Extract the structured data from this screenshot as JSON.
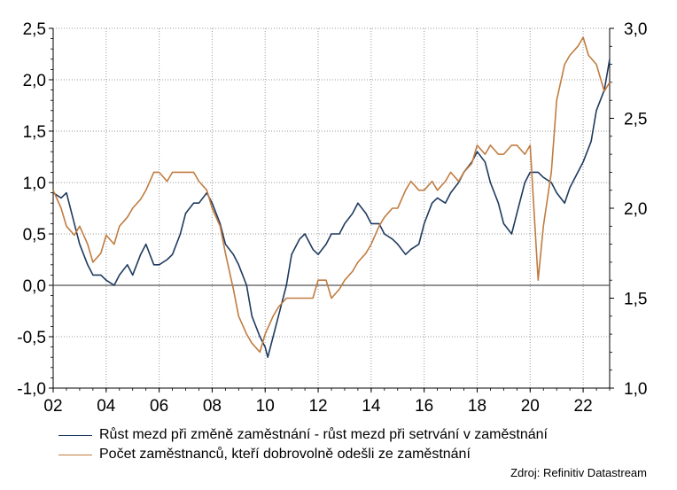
{
  "chart_data": {
    "type": "line",
    "x_range": [
      2002,
      2023
    ],
    "x_tick_labels": [
      "02",
      "04",
      "06",
      "08",
      "10",
      "12",
      "14",
      "16",
      "18",
      "20",
      "22"
    ],
    "x_tick_values": [
      2002,
      2004,
      2006,
      2008,
      2010,
      2012,
      2014,
      2016,
      2018,
      2020,
      2022
    ],
    "y_left": {
      "range": [
        -1.0,
        2.5
      ],
      "ticks": [
        -1.0,
        -0.5,
        0.0,
        0.5,
        1.0,
        1.5,
        2.0,
        2.5
      ],
      "tick_labels": [
        "-1,0",
        "-0,5",
        "0,0",
        "0,5",
        "1,0",
        "1,5",
        "2,0",
        "2,5"
      ]
    },
    "y_right": {
      "range": [
        1.0,
        3.0
      ],
      "ticks": [
        1.0,
        1.5,
        2.0,
        2.5,
        3.0
      ],
      "tick_labels": [
        "1,0",
        "1,5",
        "2,0",
        "2,5",
        "3,0"
      ]
    },
    "grid": "dotted",
    "zero_line": 0.0,
    "series": [
      {
        "name": "Růst mezd při změně zaměstnání - růst mezd při setrvání v zaměstnání",
        "axis": "left",
        "color": "#1f3a5f",
        "x": [
          2002,
          2002.3,
          2002.5,
          2002.8,
          2003,
          2003.3,
          2003.5,
          2003.8,
          2004,
          2004.3,
          2004.5,
          2004.8,
          2005,
          2005.3,
          2005.5,
          2005.8,
          2006,
          2006.3,
          2006.5,
          2006.8,
          2007,
          2007.3,
          2007.5,
          2007.8,
          2008,
          2008.3,
          2008.5,
          2008.8,
          2009,
          2009.3,
          2009.5,
          2009.8,
          2010,
          2010.1,
          2010.3,
          2010.5,
          2010.8,
          2011,
          2011.3,
          2011.5,
          2011.8,
          2012,
          2012.3,
          2012.5,
          2012.8,
          2013,
          2013.3,
          2013.5,
          2013.8,
          2014,
          2014.3,
          2014.5,
          2014.8,
          2015,
          2015.3,
          2015.5,
          2015.8,
          2016,
          2016.3,
          2016.5,
          2016.8,
          2017,
          2017.3,
          2017.5,
          2017.8,
          2018,
          2018.3,
          2018.5,
          2018.8,
          2019,
          2019.3,
          2019.5,
          2019.8,
          2020,
          2020.3,
          2020.5,
          2020.8,
          2021,
          2021.3,
          2021.5,
          2021.8,
          2022,
          2022.3,
          2022.5,
          2022.8,
          2023
        ],
        "values": [
          0.9,
          0.85,
          0.9,
          0.6,
          0.4,
          0.2,
          0.1,
          0.1,
          0.05,
          0.0,
          0.1,
          0.2,
          0.1,
          0.3,
          0.4,
          0.2,
          0.2,
          0.25,
          0.3,
          0.5,
          0.7,
          0.8,
          0.8,
          0.9,
          0.8,
          0.6,
          0.4,
          0.3,
          0.2,
          0.0,
          -0.3,
          -0.5,
          -0.6,
          -0.7,
          -0.5,
          -0.3,
          0.0,
          0.3,
          0.45,
          0.5,
          0.35,
          0.3,
          0.4,
          0.5,
          0.5,
          0.6,
          0.7,
          0.8,
          0.7,
          0.6,
          0.6,
          0.5,
          0.45,
          0.4,
          0.3,
          0.35,
          0.4,
          0.6,
          0.8,
          0.85,
          0.8,
          0.9,
          1.0,
          1.1,
          1.2,
          1.3,
          1.2,
          1.0,
          0.8,
          0.6,
          0.5,
          0.7,
          1.0,
          1.1,
          1.1,
          1.05,
          1.0,
          0.9,
          0.8,
          0.95,
          1.1,
          1.2,
          1.4,
          1.7,
          1.9,
          2.2
        ]
      },
      {
        "name": "Počet zaměstnanců, kteří dobrovolně odešli ze zaměstnání",
        "axis": "right",
        "color": "#c07c40",
        "x": [
          2002,
          2002.3,
          2002.5,
          2002.8,
          2003,
          2003.3,
          2003.5,
          2003.8,
          2004,
          2004.3,
          2004.5,
          2004.8,
          2005,
          2005.3,
          2005.5,
          2005.8,
          2006,
          2006.3,
          2006.5,
          2006.8,
          2007,
          2007.3,
          2007.5,
          2007.8,
          2008,
          2008.3,
          2008.5,
          2008.8,
          2009,
          2009.3,
          2009.5,
          2009.8,
          2010,
          2010.3,
          2010.5,
          2010.8,
          2011,
          2011.3,
          2011.5,
          2011.8,
          2012,
          2012.3,
          2012.5,
          2012.8,
          2013,
          2013.3,
          2013.5,
          2013.8,
          2014,
          2014.3,
          2014.5,
          2014.8,
          2015,
          2015.3,
          2015.5,
          2015.8,
          2016,
          2016.3,
          2016.5,
          2016.8,
          2017,
          2017.3,
          2017.5,
          2017.8,
          2018,
          2018.3,
          2018.5,
          2018.8,
          2019,
          2019.3,
          2019.5,
          2019.8,
          2020,
          2020.1,
          2020.3,
          2020.5,
          2020.8,
          2021,
          2021.3,
          2021.5,
          2021.8,
          2022,
          2022.2,
          2022.5,
          2022.8,
          2023
        ],
        "values": [
          2.1,
          2.0,
          1.9,
          1.85,
          1.9,
          1.8,
          1.7,
          1.75,
          1.85,
          1.8,
          1.9,
          1.95,
          2.0,
          2.05,
          2.1,
          2.2,
          2.2,
          2.15,
          2.2,
          2.2,
          2.2,
          2.2,
          2.15,
          2.1,
          2.0,
          1.9,
          1.75,
          1.55,
          1.4,
          1.3,
          1.25,
          1.2,
          1.3,
          1.4,
          1.45,
          1.5,
          1.5,
          1.5,
          1.5,
          1.5,
          1.6,
          1.6,
          1.5,
          1.55,
          1.6,
          1.65,
          1.7,
          1.75,
          1.8,
          1.9,
          1.95,
          2.0,
          2.0,
          2.1,
          2.15,
          2.1,
          2.1,
          2.15,
          2.1,
          2.15,
          2.2,
          2.15,
          2.2,
          2.25,
          2.35,
          2.3,
          2.35,
          2.3,
          2.3,
          2.35,
          2.35,
          2.3,
          2.35,
          2.1,
          1.6,
          1.9,
          2.2,
          2.6,
          2.8,
          2.85,
          2.9,
          2.95,
          2.85,
          2.8,
          2.65,
          2.7
        ]
      }
    ]
  },
  "legend": [
    {
      "label": "Růst mezd při změně zaměstnání - růst mezd při setrvání v zaměstnání",
      "color": "#1f3a5f"
    },
    {
      "label": "Počet zaměstnanců, kteří dobrovolně odešli ze zaměstnání",
      "color": "#c07c40"
    }
  ],
  "source": "Zdroj: Refinitiv Datastream"
}
